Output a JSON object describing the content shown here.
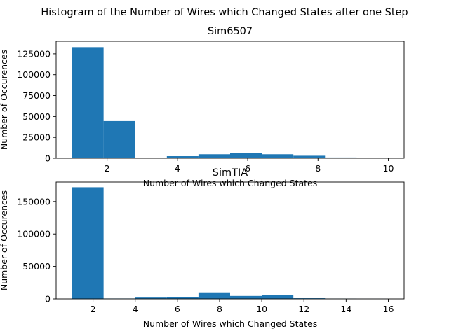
{
  "figure": {
    "title": "Histogram of the Number of Wires which Changed States after one Step"
  },
  "chart_data": [
    {
      "type": "bar",
      "title": "Sim6507",
      "xlabel": "Number of Wires which Changed States",
      "ylabel": "Number of Occurences",
      "bins": [
        {
          "x0": 1.0,
          "x1": 1.9,
          "value": 133000
        },
        {
          "x0": 1.9,
          "x1": 2.8,
          "value": 44500
        },
        {
          "x0": 2.8,
          "x1": 3.7,
          "value": 800
        },
        {
          "x0": 3.7,
          "x1": 4.6,
          "value": 2500
        },
        {
          "x0": 4.6,
          "x1": 5.5,
          "value": 4800
        },
        {
          "x0": 5.5,
          "x1": 6.4,
          "value": 6300
        },
        {
          "x0": 6.4,
          "x1": 7.3,
          "value": 4800
        },
        {
          "x0": 7.3,
          "x1": 8.2,
          "value": 3000
        },
        {
          "x0": 8.2,
          "x1": 9.1,
          "value": 900
        },
        {
          "x0": 9.1,
          "x1": 10.0,
          "value": 600
        }
      ],
      "xlim": [
        0.55,
        10.45
      ],
      "ylim": [
        0,
        140000
      ],
      "xticks": [
        2,
        4,
        6,
        8,
        10
      ],
      "yticks": [
        0,
        25000,
        50000,
        75000,
        100000,
        125000
      ],
      "color": "#1f77b4",
      "grid": false
    },
    {
      "type": "bar",
      "title": "SimTIA",
      "xlabel": "Number of Wires which Changed States",
      "ylabel": "Number of Occurences",
      "bins": [
        {
          "x0": 1.0,
          "x1": 2.5,
          "value": 172000
        },
        {
          "x0": 2.5,
          "x1": 4.0,
          "value": 600
        },
        {
          "x0": 4.0,
          "x1": 5.5,
          "value": 2000
        },
        {
          "x0": 5.5,
          "x1": 7.0,
          "value": 3000
        },
        {
          "x0": 7.0,
          "x1": 8.5,
          "value": 10000
        },
        {
          "x0": 8.5,
          "x1": 10.0,
          "value": 4500
        },
        {
          "x0": 10.0,
          "x1": 11.5,
          "value": 5500
        },
        {
          "x0": 11.5,
          "x1": 13.0,
          "value": 1000
        },
        {
          "x0": 13.0,
          "x1": 14.5,
          "value": 500
        },
        {
          "x0": 14.5,
          "x1": 16.0,
          "value": 150
        }
      ],
      "xlim": [
        0.25,
        16.75
      ],
      "ylim": [
        0,
        180000
      ],
      "xticks": [
        2,
        4,
        6,
        8,
        10,
        12,
        14,
        16
      ],
      "yticks": [
        0,
        50000,
        100000,
        150000
      ],
      "color": "#1f77b4",
      "grid": false
    }
  ]
}
